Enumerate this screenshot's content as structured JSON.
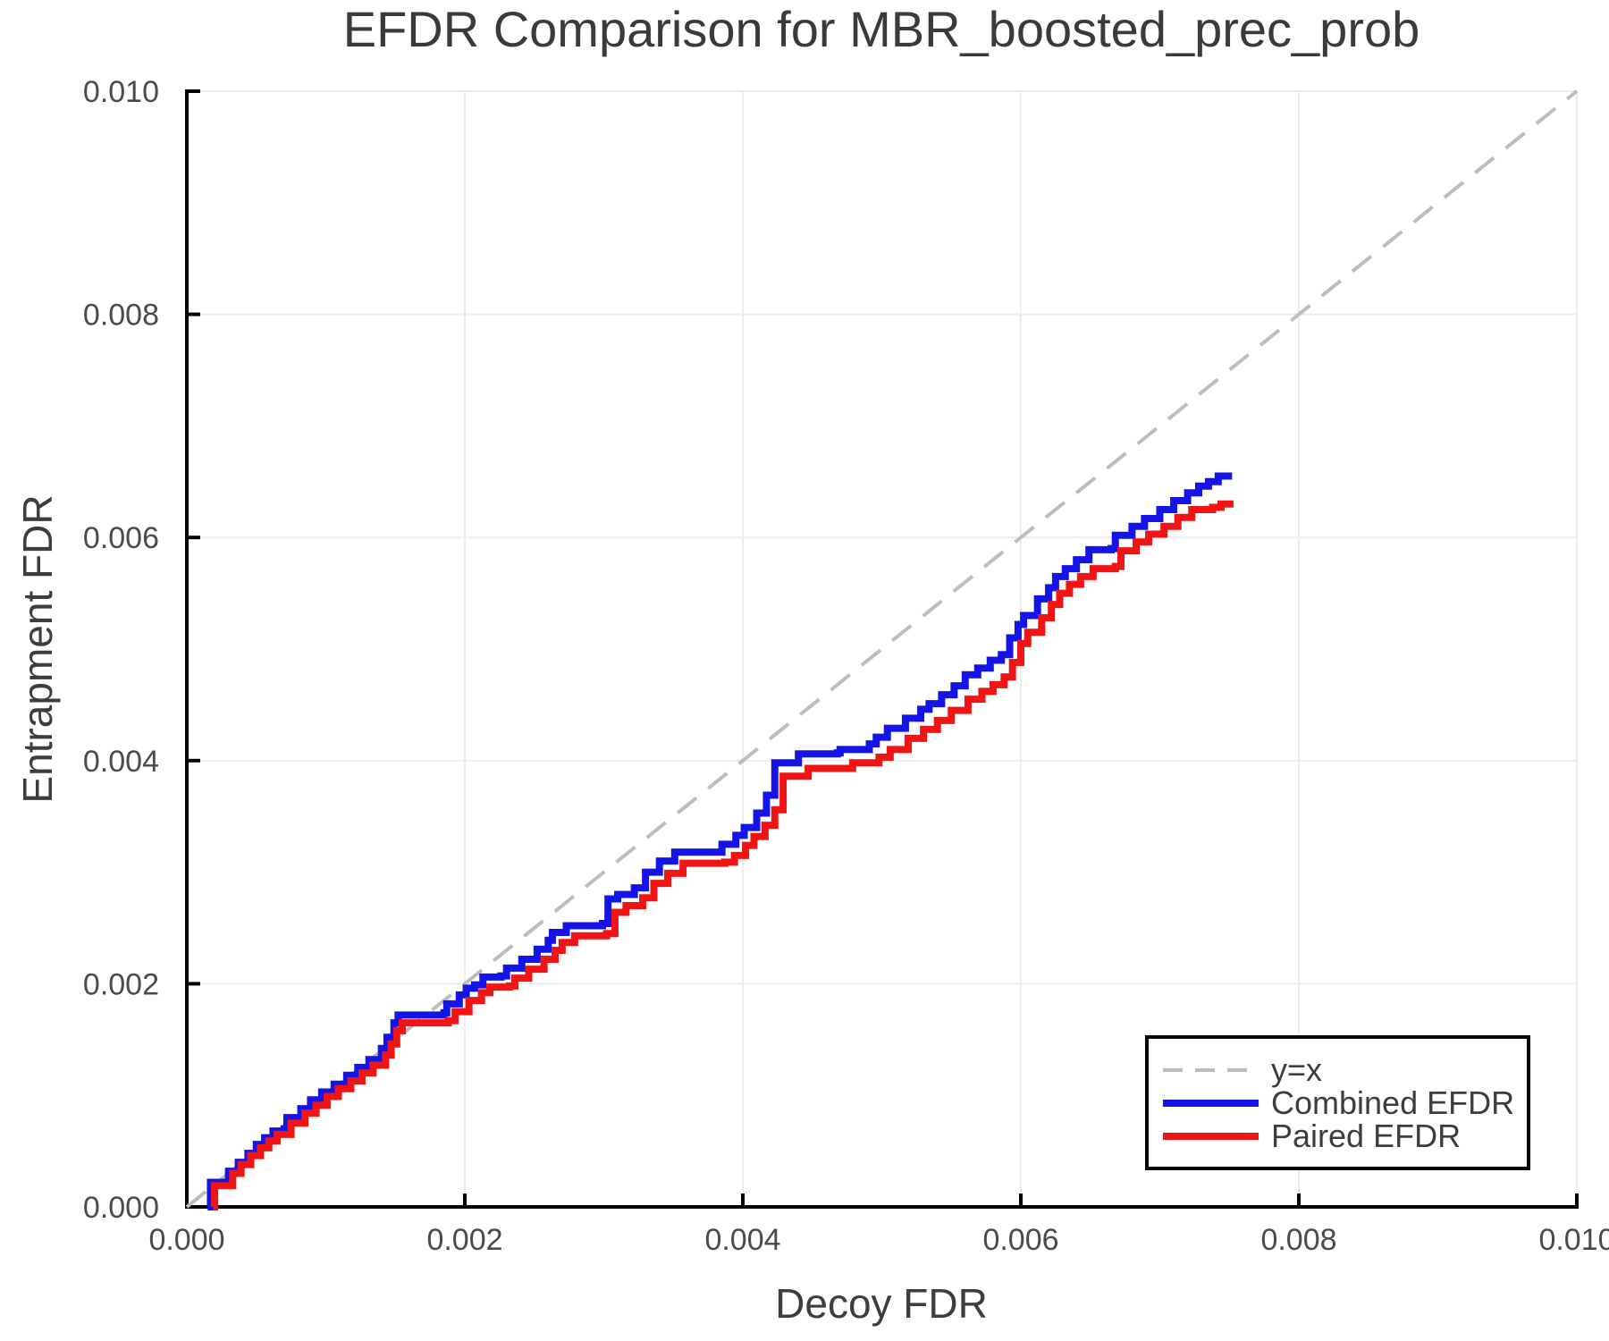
{
  "title": "EFDR Comparison for MBR_boosted_prec_prob",
  "axes": {
    "x": {
      "label": "Decoy FDR",
      "tick_labels": [
        "0.000",
        "0.002",
        "0.004",
        "0.006",
        "0.008",
        "0.010"
      ],
      "tick_values": [
        0,
        0.002,
        0.004,
        0.006,
        0.008,
        0.01
      ]
    },
    "y": {
      "label": "Entrapment FDR",
      "tick_labels": [
        "0.000",
        "0.002",
        "0.004",
        "0.006",
        "0.008",
        "0.010"
      ],
      "tick_values": [
        0,
        0.002,
        0.004,
        0.006,
        0.008,
        0.01
      ]
    }
  },
  "legend": {
    "items": [
      {
        "label": "y=x",
        "color": "#bdbdbd",
        "dash": true
      },
      {
        "label": "Combined EFDR",
        "color": "#1414e8",
        "dash": false
      },
      {
        "label": "Paired EFDR",
        "color": "#f01414",
        "dash": false
      }
    ]
  },
  "colors": {
    "background": "#ffffff",
    "grid": "#ececec",
    "spine": "#000000",
    "identity_line": "#bdbdbd",
    "combined": "#1414e8",
    "paired": "#f01414"
  },
  "chart_data": {
    "type": "line",
    "title": "EFDR Comparison for MBR_boosted_prec_prob",
    "xlabel": "Decoy FDR",
    "ylabel": "Entrapment FDR",
    "xlim": [
      0,
      0.01
    ],
    "ylim": [
      0,
      0.01
    ],
    "grid": true,
    "legend_position": "lower right",
    "series": [
      {
        "name": "y=x",
        "style": "dashed",
        "color": "#bdbdbd",
        "points": [
          [
            0,
            0
          ],
          [
            0.01,
            0.01
          ]
        ]
      },
      {
        "name": "Combined EFDR",
        "style": "step",
        "color": "#1414e8",
        "points": [
          [
            0.00015,
            0
          ],
          [
            0.00017,
            0.00022
          ],
          [
            0.00028,
            0.00022
          ],
          [
            0.0003,
            0.00032
          ],
          [
            0.00035,
            0.00032
          ],
          [
            0.00037,
            0.0004
          ],
          [
            0.00042,
            0.0004
          ],
          [
            0.00044,
            0.00048
          ],
          [
            0.00048,
            0.00048
          ],
          [
            0.0005,
            0.00056
          ],
          [
            0.00056,
            0.00062
          ],
          [
            0.00062,
            0.00068
          ],
          [
            0.0007,
            0.0007
          ],
          [
            0.00072,
            0.0008
          ],
          [
            0.0008,
            0.0008
          ],
          [
            0.00082,
            0.00088
          ],
          [
            0.00089,
            0.00096
          ],
          [
            0.00097,
            0.00103
          ],
          [
            0.00106,
            0.0011
          ],
          [
            0.00115,
            0.00118
          ],
          [
            0.00123,
            0.00125
          ],
          [
            0.00131,
            0.00132
          ],
          [
            0.0014,
            0.00142
          ],
          [
            0.00144,
            0.00152
          ],
          [
            0.00149,
            0.00165
          ],
          [
            0.00152,
            0.00172
          ],
          [
            0.00185,
            0.00174
          ],
          [
            0.00187,
            0.00182
          ],
          [
            0.00196,
            0.0019
          ],
          [
            0.00201,
            0.00196
          ],
          [
            0.00207,
            0.00199
          ],
          [
            0.00213,
            0.00206
          ],
          [
            0.00226,
            0.00207
          ],
          [
            0.0023,
            0.00214
          ],
          [
            0.00241,
            0.00222
          ],
          [
            0.00252,
            0.00231
          ],
          [
            0.0026,
            0.00239
          ],
          [
            0.00263,
            0.00246
          ],
          [
            0.00273,
            0.00252
          ],
          [
            0.00299,
            0.00254
          ],
          [
            0.00303,
            0.00276
          ],
          [
            0.0031,
            0.0028
          ],
          [
            0.00322,
            0.00286
          ],
          [
            0.0033,
            0.003
          ],
          [
            0.0034,
            0.0031
          ],
          [
            0.00351,
            0.00318
          ],
          [
            0.00378,
            0.00318
          ],
          [
            0.00385,
            0.00325
          ],
          [
            0.00395,
            0.00333
          ],
          [
            0.00401,
            0.0034
          ],
          [
            0.0041,
            0.00353
          ],
          [
            0.00417,
            0.00369
          ],
          [
            0.00423,
            0.00398
          ],
          [
            0.0044,
            0.00406
          ],
          [
            0.00468,
            0.00407
          ],
          [
            0.0047,
            0.0041
          ],
          [
            0.00491,
            0.00415
          ],
          [
            0.00496,
            0.00421
          ],
          [
            0.00504,
            0.00429
          ],
          [
            0.00517,
            0.00438
          ],
          [
            0.00528,
            0.00446
          ],
          [
            0.00534,
            0.00451
          ],
          [
            0.00543,
            0.00459
          ],
          [
            0.00552,
            0.00467
          ],
          [
            0.0056,
            0.00477
          ],
          [
            0.00569,
            0.00483
          ],
          [
            0.00578,
            0.0049
          ],
          [
            0.00586,
            0.00495
          ],
          [
            0.00592,
            0.0051
          ],
          [
            0.00598,
            0.00522
          ],
          [
            0.00602,
            0.0053
          ],
          [
            0.00612,
            0.00545
          ],
          [
            0.0062,
            0.00555
          ],
          [
            0.00625,
            0.00565
          ],
          [
            0.00632,
            0.00572
          ],
          [
            0.0064,
            0.0058
          ],
          [
            0.00649,
            0.00589
          ],
          [
            0.00665,
            0.0059
          ],
          [
            0.00668,
            0.00602
          ],
          [
            0.0068,
            0.0061
          ],
          [
            0.00689,
            0.00617
          ],
          [
            0.007,
            0.00625
          ],
          [
            0.0071,
            0.00633
          ],
          [
            0.0072,
            0.0064
          ],
          [
            0.00728,
            0.00646
          ],
          [
            0.00735,
            0.0065
          ],
          [
            0.00742,
            0.00655
          ],
          [
            0.00752,
            0.00655
          ]
        ]
      },
      {
        "name": "Paired EFDR",
        "style": "step",
        "color": "#f01414",
        "points": [
          [
            0.00019,
            0
          ],
          [
            0.0002,
            0.00019
          ],
          [
            0.00031,
            0.00019
          ],
          [
            0.00033,
            0.0003
          ],
          [
            0.00039,
            0.00038
          ],
          [
            0.00046,
            0.00046
          ],
          [
            0.00053,
            0.00053
          ],
          [
            0.00059,
            0.00059
          ],
          [
            0.00065,
            0.00065
          ],
          [
            0.00075,
            0.00075
          ],
          [
            0.00085,
            0.00084
          ],
          [
            0.00093,
            0.00091
          ],
          [
            0.00101,
            0.00099
          ],
          [
            0.00109,
            0.00106
          ],
          [
            0.00118,
            0.00113
          ],
          [
            0.00126,
            0.0012
          ],
          [
            0.00134,
            0.00127
          ],
          [
            0.00143,
            0.00136
          ],
          [
            0.00147,
            0.00146
          ],
          [
            0.00151,
            0.00158
          ],
          [
            0.00155,
            0.00165
          ],
          [
            0.00188,
            0.00167
          ],
          [
            0.00193,
            0.00175
          ],
          [
            0.00203,
            0.00185
          ],
          [
            0.00212,
            0.00192
          ],
          [
            0.00218,
            0.00197
          ],
          [
            0.00232,
            0.00198
          ],
          [
            0.00236,
            0.00205
          ],
          [
            0.00246,
            0.00213
          ],
          [
            0.00257,
            0.00222
          ],
          [
            0.00265,
            0.0023
          ],
          [
            0.0027,
            0.00237
          ],
          [
            0.00279,
            0.00243
          ],
          [
            0.00302,
            0.00245
          ],
          [
            0.00308,
            0.00264
          ],
          [
            0.00316,
            0.0027
          ],
          [
            0.00328,
            0.00277
          ],
          [
            0.00336,
            0.0029
          ],
          [
            0.00346,
            0.00299
          ],
          [
            0.00357,
            0.00308
          ],
          [
            0.00387,
            0.00309
          ],
          [
            0.00394,
            0.00315
          ],
          [
            0.00402,
            0.00324
          ],
          [
            0.00408,
            0.00332
          ],
          [
            0.00416,
            0.00342
          ],
          [
            0.00423,
            0.00356
          ],
          [
            0.00429,
            0.00386
          ],
          [
            0.00447,
            0.00393
          ],
          [
            0.00479,
            0.00398
          ],
          [
            0.00498,
            0.00403
          ],
          [
            0.00506,
            0.0041
          ],
          [
            0.00519,
            0.0042
          ],
          [
            0.0053,
            0.00428
          ],
          [
            0.0054,
            0.00436
          ],
          [
            0.0055,
            0.00445
          ],
          [
            0.00562,
            0.00455
          ],
          [
            0.00572,
            0.00462
          ],
          [
            0.0058,
            0.00468
          ],
          [
            0.00588,
            0.00475
          ],
          [
            0.00594,
            0.00488
          ],
          [
            0.006,
            0.00505
          ],
          [
            0.00605,
            0.00515
          ],
          [
            0.00615,
            0.00528
          ],
          [
            0.00622,
            0.0054
          ],
          [
            0.00628,
            0.0055
          ],
          [
            0.00635,
            0.00558
          ],
          [
            0.00643,
            0.00565
          ],
          [
            0.00652,
            0.00572
          ],
          [
            0.00668,
            0.00574
          ],
          [
            0.00672,
            0.00588
          ],
          [
            0.00683,
            0.00596
          ],
          [
            0.00692,
            0.00603
          ],
          [
            0.00703,
            0.0061
          ],
          [
            0.00713,
            0.00618
          ],
          [
            0.00723,
            0.00625
          ],
          [
            0.00738,
            0.00627
          ],
          [
            0.00744,
            0.0063
          ],
          [
            0.00753,
            0.0063
          ]
        ]
      }
    ]
  }
}
